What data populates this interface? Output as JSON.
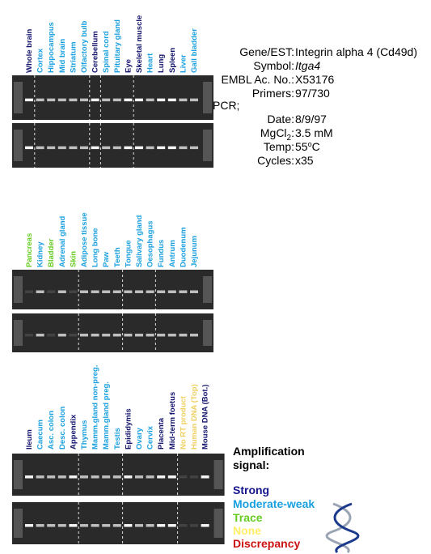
{
  "panels": [
    {
      "lanes": [
        {
          "label": "Whole brain",
          "color": "#14146e"
        },
        {
          "label": "Cortex",
          "color": "#1aa0e0"
        },
        {
          "label": "Hippocampus",
          "color": "#1aa0e0"
        },
        {
          "label": "Mid brain",
          "color": "#1aa0e0"
        },
        {
          "label": "Striatum",
          "color": "#1aa0e0"
        },
        {
          "label": "Olfactory bulb",
          "color": "#1aa0e0"
        },
        {
          "label": "Cerebellum",
          "color": "#14146e"
        },
        {
          "label": "Spinal cord",
          "color": "#1aa0e0"
        },
        {
          "label": "Pituitary gland",
          "color": "#1aa0e0"
        },
        {
          "label": "Eye",
          "color": "#14146e"
        },
        {
          "label": "Skeletal muscle",
          "color": "#14146e"
        },
        {
          "label": "Heart",
          "color": "#1aa0e0"
        },
        {
          "label": "Lung",
          "color": "#14146e"
        },
        {
          "label": "Spleen",
          "color": "#14146e"
        },
        {
          "label": "Liver",
          "color": "#1aa0e0"
        },
        {
          "label": "Gall bladder",
          "color": "#1aa0e0"
        }
      ]
    },
    {
      "lanes": [
        {
          "label": "Pancreas",
          "color": "#66cc22"
        },
        {
          "label": "Kidney",
          "color": "#1aa0e0"
        },
        {
          "label": "Bladder",
          "color": "#66cc22"
        },
        {
          "label": "Adrenal gland",
          "color": "#1aa0e0"
        },
        {
          "label": "Skin",
          "color": "#66cc22"
        },
        {
          "label": "Adipose tissue",
          "color": "#1aa0e0"
        },
        {
          "label": "Long bone",
          "color": "#1aa0e0"
        },
        {
          "label": "Paw",
          "color": "#1aa0e0"
        },
        {
          "label": "Teeth",
          "color": "#1aa0e0"
        },
        {
          "label": "Tongue",
          "color": "#1aa0e0"
        },
        {
          "label": "Salivary gland",
          "color": "#1aa0e0"
        },
        {
          "label": "Oesophagus",
          "color": "#1aa0e0"
        },
        {
          "label": "Fundus",
          "color": "#1aa0e0"
        },
        {
          "label": "Antrum",
          "color": "#1aa0e0"
        },
        {
          "label": "Duodenum",
          "color": "#1aa0e0"
        },
        {
          "label": "Jejunum",
          "color": "#1aa0e0"
        }
      ]
    },
    {
      "lanes": [
        {
          "label": "Ileum",
          "color": "#14146e"
        },
        {
          "label": "Caecum",
          "color": "#1aa0e0"
        },
        {
          "label": "Asc. colon",
          "color": "#1aa0e0"
        },
        {
          "label": "Desc. colon",
          "color": "#1aa0e0"
        },
        {
          "label": "Appendix",
          "color": "#14146e"
        },
        {
          "label": "Thymus",
          "color": "#1aa0e0"
        },
        {
          "label": "Mamm.gland non-preg.",
          "color": "#1aa0e0"
        },
        {
          "label": "Mamm.gland preg.",
          "color": "#1aa0e0"
        },
        {
          "label": "Testis",
          "color": "#1aa0e0"
        },
        {
          "label": "Epididymis",
          "color": "#14146e"
        },
        {
          "label": "Ovary",
          "color": "#1aa0e0"
        },
        {
          "label": "Cervix",
          "color": "#1aa0e0"
        },
        {
          "label": "Placenta",
          "color": "#14146e"
        },
        {
          "label": "Mid-term foetus",
          "color": "#14146e"
        },
        {
          "label": "No RT product",
          "color": "#f0d060"
        },
        {
          "label": "Human DNA (Top)",
          "color": "#f0d060"
        },
        {
          "label": "Mouse DNA (Bot.)",
          "color": "#14146e"
        }
      ]
    }
  ],
  "info": [
    {
      "label": "Gene/EST:",
      "value": "Integrin alpha 4 (Cd49d)"
    },
    {
      "label": "Symbol:",
      "value": "Itga4",
      "italic": true
    },
    {
      "label": "EMBL Ac. No.:",
      "value": "X53176"
    },
    {
      "label": "Primers:",
      "value": "97/730"
    },
    {
      "label": "PCR;"
    },
    {
      "label": "Date:",
      "value": "8/9/97"
    },
    {
      "label": "MgCl",
      "label_sub": "2",
      "label_end": ":",
      "value": "3.5 mM"
    },
    {
      "label": "Temp:",
      "value": "55",
      "value_sup": "o",
      "value_end": "C"
    },
    {
      "label": "Cycles:",
      "value": "x35"
    }
  ],
  "legend": {
    "title": [
      "Amplification",
      "signal:"
    ],
    "items": [
      {
        "label": "Strong",
        "color": "#14148c"
      },
      {
        "label": "Moderate-weak",
        "color": "#1aa0e0"
      },
      {
        "label": "Trace",
        "color": "#66cc22"
      },
      {
        "label": "None",
        "color": "#ffee66"
      },
      {
        "label": "Discrepancy",
        "color": "#cc1111"
      }
    ]
  }
}
